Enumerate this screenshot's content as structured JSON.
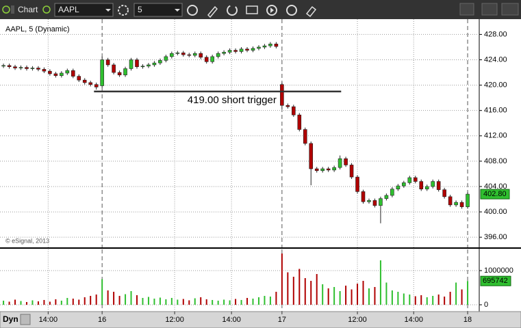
{
  "ui": {
    "toolbar": {
      "chart": "Chart",
      "symbol": "AAPL",
      "interval": "5"
    },
    "footer": {
      "mode": "Dyn"
    }
  },
  "chart_data": [
    {
      "type": "candlestick",
      "title": "AAPL, 5 (Dynamic)",
      "credit": "© eSignal, 2013",
      "open": [
        423.0,
        423.1,
        422.9,
        422.7,
        422.8,
        422.6,
        422.7,
        422.5,
        422.2,
        421.8,
        421.5,
        421.9,
        422.3,
        421.4,
        420.8,
        420.4,
        420.1,
        419.9,
        424.0,
        423.2,
        422.0,
        421.6,
        422.6,
        424.0,
        422.9,
        423.0,
        423.2,
        423.5,
        423.9,
        424.5,
        425.0,
        425.1,
        424.8,
        424.7,
        425.0,
        424.4,
        423.7,
        424.5,
        425.0,
        425.2,
        425.5,
        425.3,
        425.7,
        425.5,
        425.8,
        426.0,
        426.2,
        426.5,
        420.1,
        416.8,
        416.6,
        415.3,
        413.0,
        410.8,
        406.8,
        406.5,
        406.8,
        406.6,
        407.0,
        408.4,
        407.4,
        405.5,
        403.2,
        401.6,
        401.8,
        401.0,
        402.1,
        402.6,
        403.6,
        404.1,
        404.6,
        405.4,
        404.8,
        403.6,
        404.0,
        404.8,
        403.5,
        402.4,
        401.1,
        401.5,
        400.8
      ],
      "high": [
        423.4,
        423.4,
        423.2,
        423.1,
        423.1,
        423.0,
        423.0,
        422.8,
        422.5,
        422.1,
        422.2,
        422.6,
        422.6,
        421.7,
        421.1,
        420.7,
        420.4,
        424.5,
        424.3,
        423.5,
        422.3,
        422.9,
        424.3,
        424.3,
        423.3,
        423.5,
        423.8,
        424.2,
        424.8,
        425.3,
        425.4,
        425.4,
        425.1,
        425.3,
        425.3,
        424.7,
        424.8,
        425.3,
        425.5,
        425.8,
        425.8,
        426.0,
        426.0,
        426.1,
        426.3,
        426.5,
        426.8,
        426.8,
        420.4,
        417.1,
        416.9,
        415.6,
        413.3,
        411.1,
        407.1,
        407.1,
        407.1,
        407.3,
        408.9,
        408.7,
        407.7,
        405.8,
        403.5,
        402.1,
        402.1,
        402.4,
        402.9,
        403.9,
        404.4,
        404.9,
        405.7,
        405.7,
        405.1,
        404.3,
        405.1,
        405.1,
        403.8,
        402.7,
        401.8,
        401.8,
        403.1
      ],
      "low": [
        422.7,
        422.6,
        422.4,
        422.4,
        422.3,
        422.3,
        422.2,
        421.9,
        421.5,
        421.2,
        421.2,
        421.6,
        421.1,
        420.5,
        420.1,
        419.8,
        419.3,
        419.6,
        422.9,
        421.7,
        421.3,
        421.3,
        422.3,
        422.6,
        422.6,
        422.7,
        422.9,
        423.2,
        423.6,
        424.2,
        424.7,
        424.5,
        424.4,
        424.4,
        424.1,
        423.4,
        423.4,
        424.2,
        424.7,
        424.9,
        425.0,
        425.0,
        425.2,
        425.2,
        425.5,
        425.7,
        425.9,
        425.8,
        416.3,
        416.3,
        415.0,
        412.7,
        410.5,
        404.2,
        406.2,
        406.2,
        406.3,
        406.3,
        406.7,
        407.1,
        405.2,
        402.9,
        401.3,
        401.3,
        400.7,
        398.2,
        401.8,
        402.3,
        403.3,
        403.8,
        404.3,
        404.5,
        403.3,
        403.3,
        403.7,
        403.2,
        402.1,
        400.8,
        400.8,
        400.5,
        400.5
      ],
      "close": [
        423.1,
        422.9,
        422.7,
        422.8,
        422.6,
        422.7,
        422.5,
        422.2,
        421.8,
        421.5,
        421.9,
        422.3,
        421.4,
        420.8,
        420.4,
        420.1,
        419.7,
        424.0,
        423.2,
        422.0,
        421.6,
        422.6,
        424.0,
        422.9,
        423.0,
        423.2,
        423.5,
        423.9,
        424.5,
        425.0,
        425.1,
        424.8,
        424.7,
        425.0,
        424.4,
        423.7,
        424.5,
        425.0,
        425.2,
        425.5,
        425.3,
        425.7,
        425.5,
        425.8,
        426.0,
        426.2,
        426.5,
        426.1,
        416.8,
        416.6,
        415.3,
        413.0,
        410.8,
        406.8,
        406.5,
        406.8,
        406.6,
        407.0,
        408.4,
        407.4,
        405.5,
        403.2,
        401.6,
        401.8,
        401.0,
        402.1,
        402.6,
        403.6,
        404.1,
        404.6,
        405.4,
        404.8,
        403.6,
        404.0,
        404.8,
        403.5,
        402.4,
        401.1,
        401.5,
        400.8,
        402.8
      ],
      "up_color": "#2fbf2f",
      "down_color": "#b00000",
      "xlim": [
        -0.6,
        82
      ],
      "xticks": [
        {
          "value": 7.7,
          "label": "14:00"
        },
        {
          "value": 17,
          "label": "16"
        },
        {
          "value": 29.5,
          "label": "12:00"
        },
        {
          "value": 39.3,
          "label": "14:00"
        },
        {
          "value": 48,
          "label": "17"
        },
        {
          "value": 61,
          "label": "12:00"
        },
        {
          "value": 70.7,
          "label": "14:00"
        },
        {
          "value": 80,
          "label": "18"
        }
      ],
      "ylim": [
        394.4,
        430.2
      ],
      "yticks": [
        {
          "value": 396,
          "label": "396.00"
        },
        {
          "value": 400,
          "label": "400.00"
        },
        {
          "value": 404,
          "label": "404.00"
        },
        {
          "value": 408,
          "label": "408.00"
        },
        {
          "value": 412,
          "label": "412.00"
        },
        {
          "value": 416,
          "label": "416.00"
        },
        {
          "value": 420,
          "label": "420.00"
        },
        {
          "value": 424,
          "label": "424.00"
        },
        {
          "value": 428,
          "label": "428.00"
        }
      ],
      "grid": true,
      "last_price_label": "402.80",
      "annotations": [
        {
          "text": "419.00 short trigger",
          "level": 419,
          "x_range": [
            15.6,
            58.2
          ]
        }
      ]
    },
    {
      "type": "bar",
      "name": "volume",
      "values": [
        120000,
        90000,
        150000,
        110000,
        80000,
        130000,
        100000,
        140000,
        90000,
        160000,
        120000,
        200000,
        180000,
        150000,
        220000,
        260000,
        300000,
        750000,
        420000,
        380000,
        260000,
        310000,
        400000,
        280000,
        200000,
        230000,
        180000,
        210000,
        160000,
        200000,
        150000,
        170000,
        130000,
        190000,
        220000,
        160000,
        140000,
        120000,
        150000,
        130000,
        170000,
        140000,
        200000,
        180000,
        220000,
        260000,
        240000,
        380000,
        1500000,
        950000,
        820000,
        1050000,
        780000,
        700000,
        900000,
        600000,
        480000,
        520000,
        400000,
        560000,
        450000,
        620000,
        700000,
        480000,
        520000,
        1300000,
        650000,
        420000,
        380000,
        330000,
        300000,
        250000,
        280000,
        220000,
        260000,
        300000,
        240000,
        380000,
        650000,
        450000,
        695742
      ],
      "xlim": [
        -0.6,
        82
      ],
      "ylim": [
        -180000,
        1620000
      ],
      "yticks": [
        0,
        1000000
      ],
      "grid": true
    }
  ]
}
